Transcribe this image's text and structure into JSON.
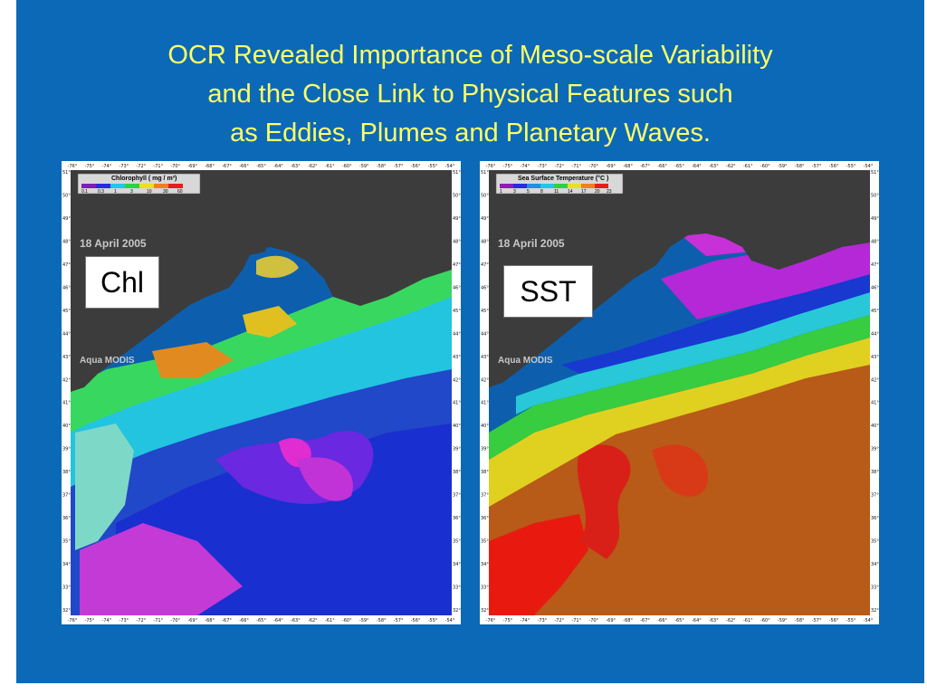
{
  "slide": {
    "background": "#0b69b7",
    "title_color": "#ffff66",
    "title_lines": [
      "OCR Revealed Importance of Meso-scale Variability",
      "and the Close Link to Physical Features such",
      "as Eddies, Plumes and Planetary Waves."
    ]
  },
  "maps": [
    {
      "id": "chl",
      "colorbar_title": "Chlorophyll    ( mg / m³)",
      "colorbar_ticks": [
        "0.1",
        "0.3",
        "1",
        "3",
        "10",
        "30",
        "60"
      ],
      "date_label": "18 April 2005",
      "sensor_label": "Aqua  MODIS",
      "panel_label": "Chl"
    },
    {
      "id": "sst",
      "colorbar_title": "Sea Surface Temperature  (°C )",
      "colorbar_ticks": [
        "1",
        "3",
        "5",
        "8",
        "11",
        "14",
        "17",
        "20",
        "23"
      ],
      "date_label": "18 April 2005",
      "sensor_label": "Aqua  MODIS",
      "panel_label": "SST"
    }
  ],
  "axis": {
    "longitudes": [
      "-76°",
      "-75°",
      "-74°",
      "-73°",
      "-72°",
      "-71°",
      "-70°",
      "-69°",
      "-68°",
      "-67°",
      "-66°",
      "-65°",
      "-64°",
      "-63°",
      "-62°",
      "-61°",
      "-60°",
      "-59°",
      "-58°",
      "-57°",
      "-56°",
      "-55°",
      "-54°"
    ],
    "latitudes": [
      "51°",
      "50°",
      "49°",
      "48°",
      "47°",
      "46°",
      "45°",
      "44°",
      "43°",
      "42°",
      "41°",
      "40°",
      "39°",
      "38°",
      "37°",
      "36°",
      "35°",
      "34°",
      "33°",
      "32°"
    ]
  }
}
